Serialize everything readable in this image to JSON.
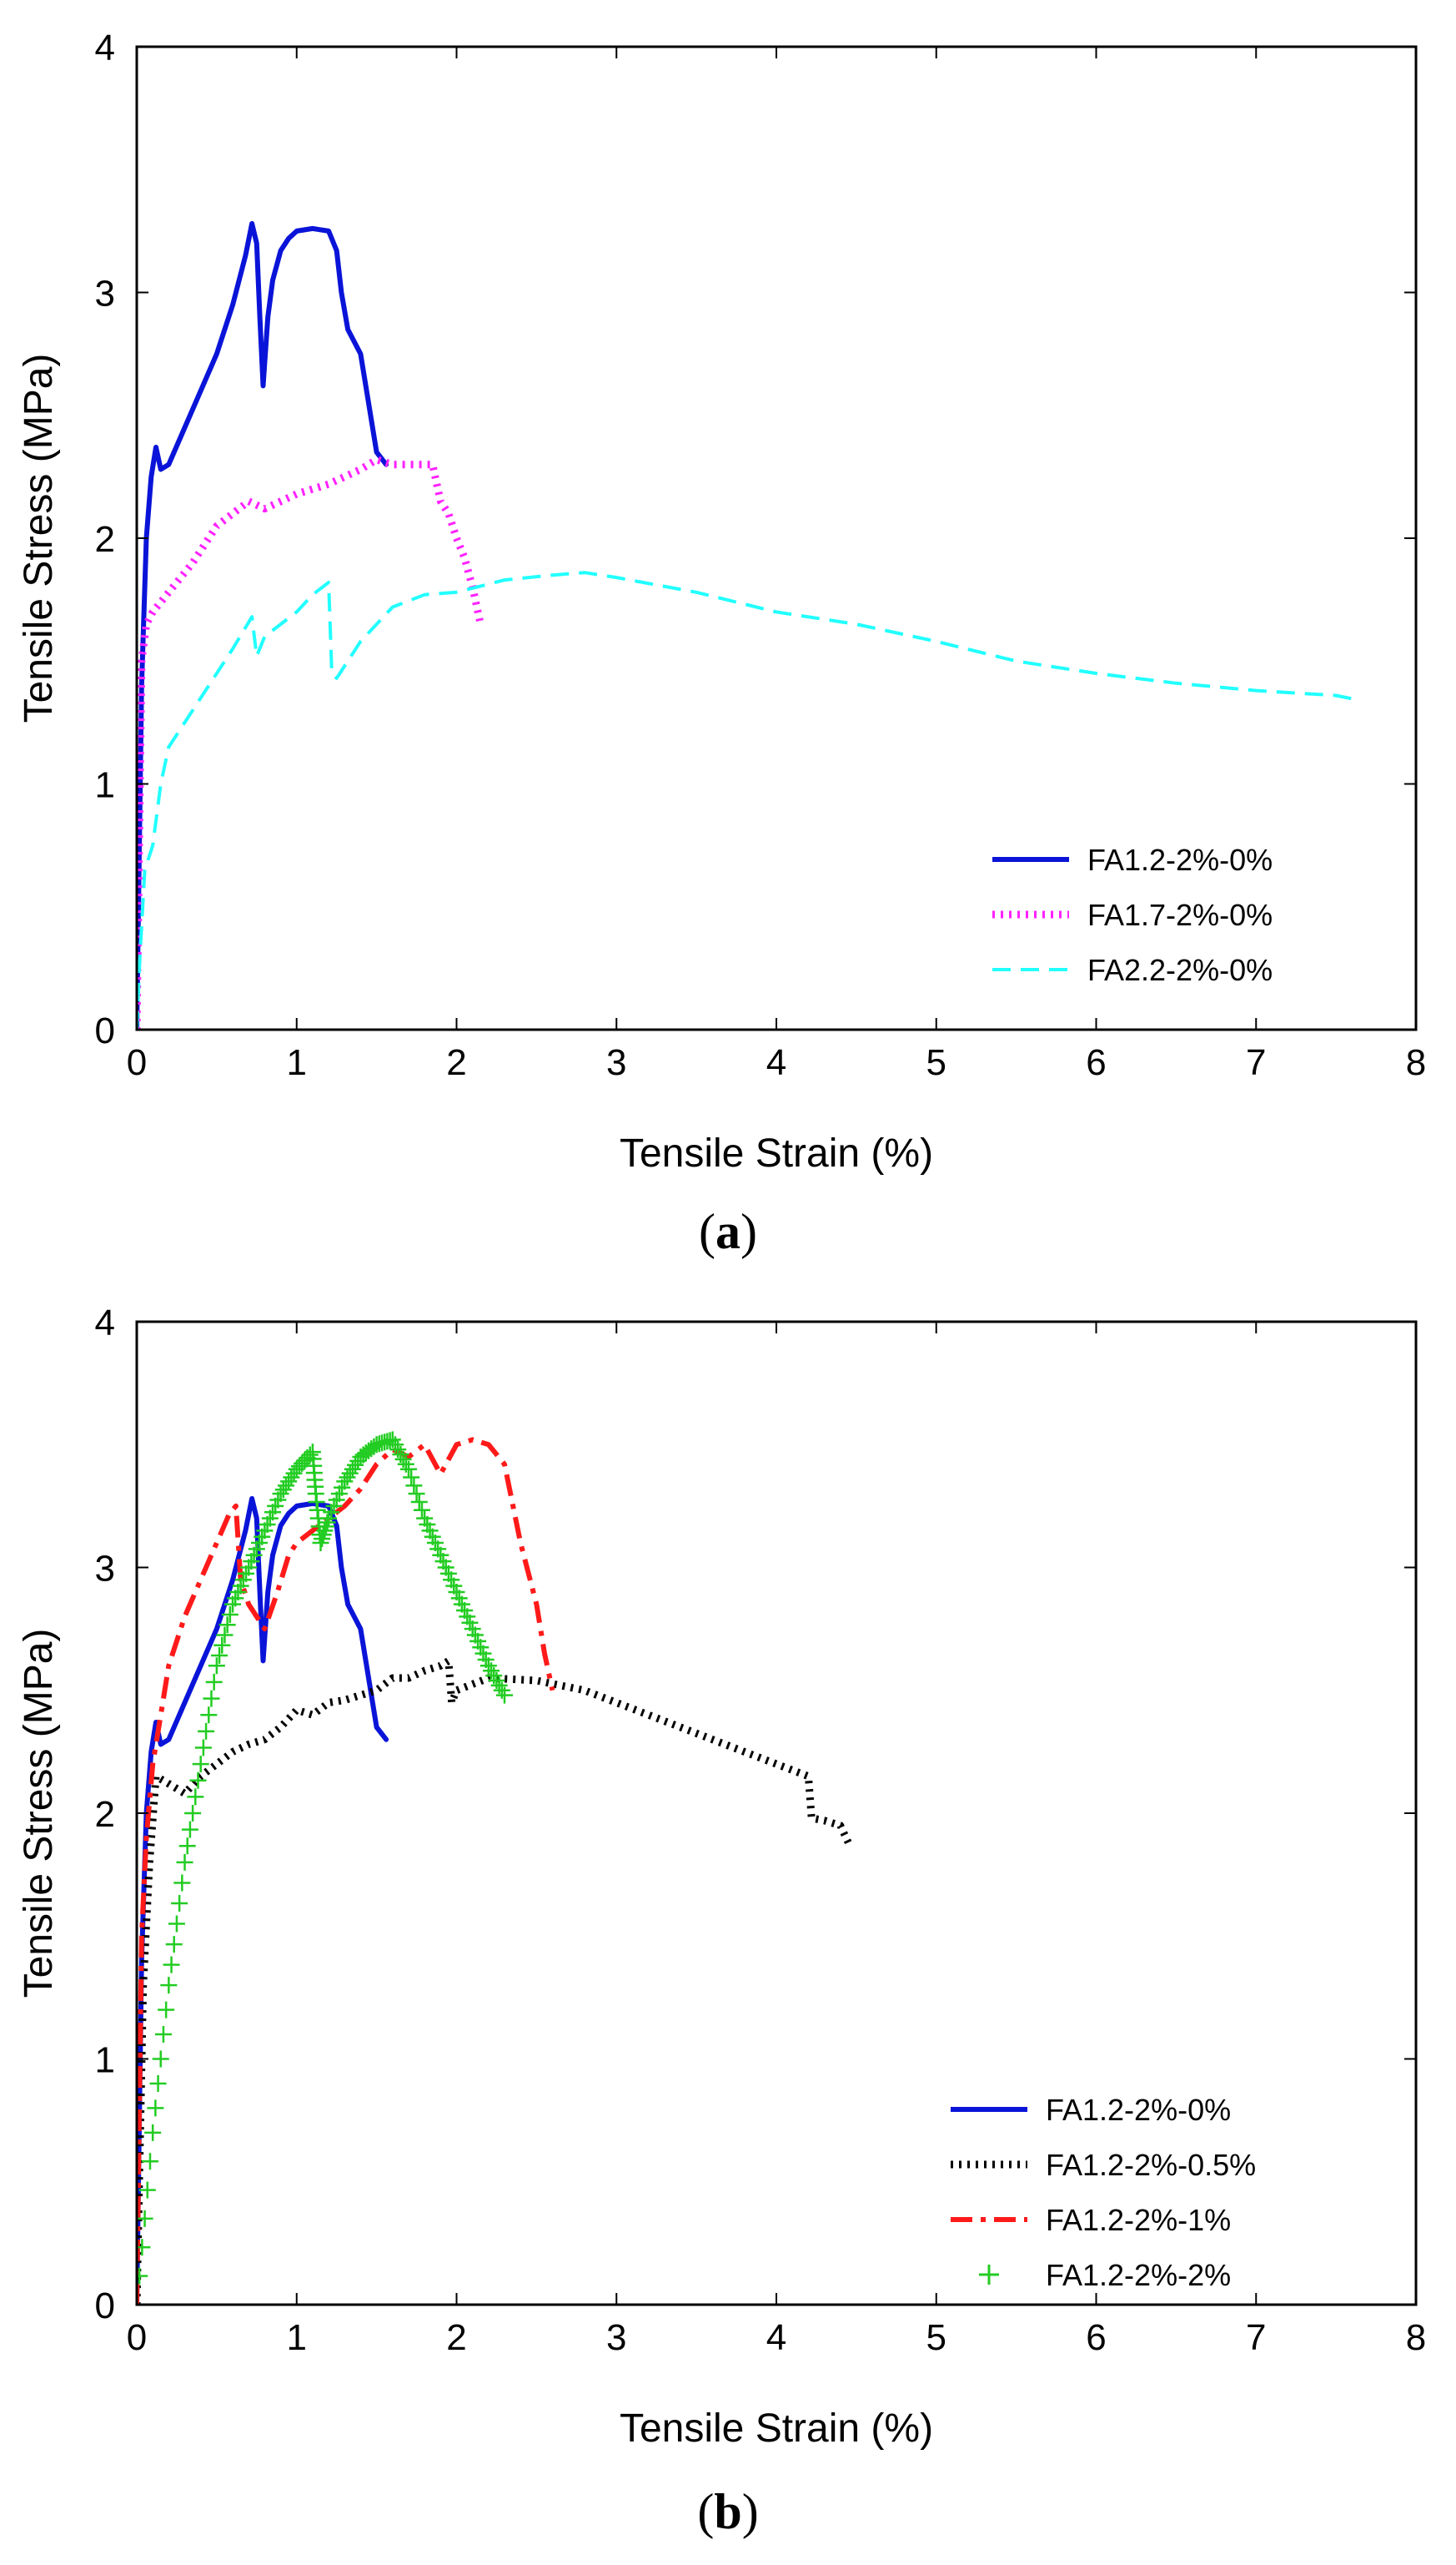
{
  "chart_data": [
    {
      "type": "line",
      "panel": "(a)",
      "caption_letter": "a",
      "xlabel": "Tensile Strain (%)",
      "ylabel": "Tensile Stress (MPa)",
      "xlim": [
        0,
        8
      ],
      "ylim": [
        0,
        4
      ],
      "xticks": [
        "0",
        "1",
        "2",
        "3",
        "4",
        "5",
        "6",
        "7",
        "8"
      ],
      "yticks": [
        "0",
        "1",
        "2",
        "3",
        "4"
      ],
      "legend_position": "bottom-right",
      "series": [
        {
          "name": "FA1.2-2%-0%",
          "color": "#0a14d8",
          "style": "solid",
          "x": [
            0,
            0.03,
            0.06,
            0.09,
            0.12,
            0.15,
            0.2,
            0.3,
            0.4,
            0.5,
            0.6,
            0.68,
            0.72,
            0.75,
            0.77,
            0.79,
            0.82,
            0.85,
            0.9,
            0.95,
            1.0,
            1.1,
            1.2,
            1.25,
            1.28,
            1.32,
            1.4,
            1.45,
            1.5,
            1.56
          ],
          "y": [
            0,
            1.4,
            2.0,
            2.25,
            2.37,
            2.28,
            2.3,
            2.45,
            2.6,
            2.75,
            2.95,
            3.15,
            3.28,
            3.2,
            2.9,
            2.62,
            2.9,
            3.05,
            3.17,
            3.22,
            3.25,
            3.26,
            3.25,
            3.17,
            3.0,
            2.85,
            2.75,
            2.55,
            2.35,
            2.3
          ]
        },
        {
          "name": "FA1.7-2%-0%",
          "color": "#ff22ff",
          "style": "dotted",
          "x": [
            0,
            0.03,
            0.06,
            0.1,
            0.2,
            0.35,
            0.5,
            0.6,
            0.7,
            0.8,
            1.0,
            1.2,
            1.4,
            1.5,
            1.6,
            1.7,
            1.8,
            1.85,
            1.9,
            1.95,
            2.0,
            2.05,
            2.1,
            2.15
          ],
          "y": [
            0,
            1.5,
            1.65,
            1.7,
            1.78,
            1.9,
            2.05,
            2.1,
            2.15,
            2.12,
            2.18,
            2.22,
            2.28,
            2.32,
            2.3,
            2.3,
            2.3,
            2.3,
            2.15,
            2.1,
            2.0,
            1.92,
            1.8,
            1.65
          ]
        },
        {
          "name": "FA2.2-2%-0%",
          "color": "#22ffff",
          "style": "dashed",
          "x": [
            0,
            0.02,
            0.05,
            0.1,
            0.15,
            0.2,
            0.3,
            0.45,
            0.6,
            0.72,
            0.75,
            0.8,
            0.9,
            1.0,
            1.1,
            1.2,
            1.22,
            1.25,
            1.4,
            1.6,
            1.8,
            2.0,
            2.3,
            2.6,
            2.8,
            3.0,
            3.5,
            4.0,
            4.5,
            5.0,
            5.5,
            6.0,
            6.5,
            7.0,
            7.5,
            7.65
          ],
          "y": [
            0,
            0.3,
            0.65,
            0.75,
            1.0,
            1.15,
            1.25,
            1.4,
            1.55,
            1.68,
            1.52,
            1.6,
            1.65,
            1.7,
            1.77,
            1.82,
            1.45,
            1.43,
            1.58,
            1.72,
            1.77,
            1.78,
            1.83,
            1.85,
            1.86,
            1.84,
            1.78,
            1.7,
            1.65,
            1.58,
            1.5,
            1.45,
            1.41,
            1.38,
            1.36,
            1.34
          ]
        }
      ]
    },
    {
      "type": "line",
      "panel": "(b)",
      "caption_letter": "b",
      "xlabel": "Tensile Strain (%)",
      "ylabel": "Tensile Stress (MPa)",
      "xlim": [
        0,
        8
      ],
      "ylim": [
        0,
        4
      ],
      "xticks": [
        "0",
        "1",
        "2",
        "3",
        "4",
        "5",
        "6",
        "7",
        "8"
      ],
      "yticks": [
        "0",
        "1",
        "2",
        "3",
        "4"
      ],
      "legend_position": "bottom-right",
      "series": [
        {
          "name": "FA1.2-2%-0%",
          "color": "#0a14d8",
          "style": "solid",
          "x": [
            0,
            0.03,
            0.06,
            0.09,
            0.12,
            0.15,
            0.2,
            0.3,
            0.4,
            0.5,
            0.6,
            0.68,
            0.72,
            0.75,
            0.77,
            0.79,
            0.82,
            0.85,
            0.9,
            0.95,
            1.0,
            1.1,
            1.2,
            1.25,
            1.28,
            1.32,
            1.4,
            1.45,
            1.5,
            1.56
          ],
          "y": [
            0,
            1.4,
            2.0,
            2.25,
            2.37,
            2.28,
            2.3,
            2.45,
            2.6,
            2.75,
            2.95,
            3.15,
            3.28,
            3.2,
            2.9,
            2.62,
            2.9,
            3.05,
            3.17,
            3.22,
            3.25,
            3.26,
            3.25,
            3.17,
            3.0,
            2.85,
            2.75,
            2.55,
            2.35,
            2.3
          ]
        },
        {
          "name": "FA1.2-2%-0.5%",
          "color": "#000000",
          "style": "dotted",
          "x": [
            0,
            0.04,
            0.08,
            0.12,
            0.2,
            0.3,
            0.4,
            0.5,
            0.6,
            0.7,
            0.8,
            0.9,
            1.0,
            1.1,
            1.2,
            1.3,
            1.4,
            1.5,
            1.6,
            1.7,
            1.8,
            1.9,
            1.95,
            1.97,
            2.0,
            2.2,
            2.5,
            2.8,
            3.0,
            3.2,
            3.4,
            3.6,
            3.8,
            4.0,
            4.2,
            4.22,
            4.3,
            4.4,
            4.45
          ],
          "y": [
            0,
            1.3,
            1.8,
            2.15,
            2.12,
            2.08,
            2.15,
            2.2,
            2.25,
            2.28,
            2.3,
            2.35,
            2.42,
            2.4,
            2.45,
            2.46,
            2.48,
            2.5,
            2.55,
            2.55,
            2.58,
            2.6,
            2.62,
            2.45,
            2.5,
            2.55,
            2.54,
            2.5,
            2.45,
            2.4,
            2.35,
            2.3,
            2.25,
            2.2,
            2.15,
            1.98,
            1.97,
            1.95,
            1.88
          ]
        },
        {
          "name": "FA1.2-2%-1%",
          "color": "#ff1a1a",
          "style": "dashdot",
          "x": [
            0,
            0.03,
            0.06,
            0.1,
            0.15,
            0.2,
            0.3,
            0.4,
            0.5,
            0.58,
            0.62,
            0.65,
            0.7,
            0.8,
            0.88,
            0.95,
            1.0,
            1.1,
            1.2,
            1.3,
            1.4,
            1.5,
            1.6,
            1.7,
            1.8,
            1.9,
            2.0,
            2.1,
            2.2,
            2.3,
            2.4,
            2.5,
            2.55,
            2.6
          ],
          "y": [
            0,
            1.5,
            1.9,
            2.2,
            2.4,
            2.6,
            2.8,
            2.95,
            3.1,
            3.22,
            3.25,
            2.95,
            2.85,
            2.75,
            2.9,
            3.05,
            3.1,
            3.15,
            3.2,
            3.25,
            3.32,
            3.42,
            3.48,
            3.45,
            3.5,
            3.38,
            3.5,
            3.52,
            3.5,
            3.42,
            3.1,
            2.85,
            2.65,
            2.5
          ]
        },
        {
          "name": "FA1.2-2%-2%",
          "color": "#22cc22",
          "style": "plus",
          "x": [
            0,
            0.1,
            0.2,
            0.3,
            0.4,
            0.5,
            0.6,
            0.7,
            0.8,
            0.9,
            1.0,
            1.1,
            1.12,
            1.15,
            1.2,
            1.3,
            1.4,
            1.5,
            1.6,
            1.7,
            1.8,
            1.9,
            2.0,
            2.1,
            2.2,
            2.3
          ],
          "y": [
            0,
            0.7,
            1.3,
            1.8,
            2.2,
            2.6,
            2.85,
            3.0,
            3.15,
            3.3,
            3.4,
            3.47,
            3.3,
            3.1,
            3.2,
            3.35,
            3.45,
            3.5,
            3.52,
            3.4,
            3.2,
            3.05,
            2.9,
            2.75,
            2.6,
            2.48
          ]
        }
      ]
    }
  ]
}
